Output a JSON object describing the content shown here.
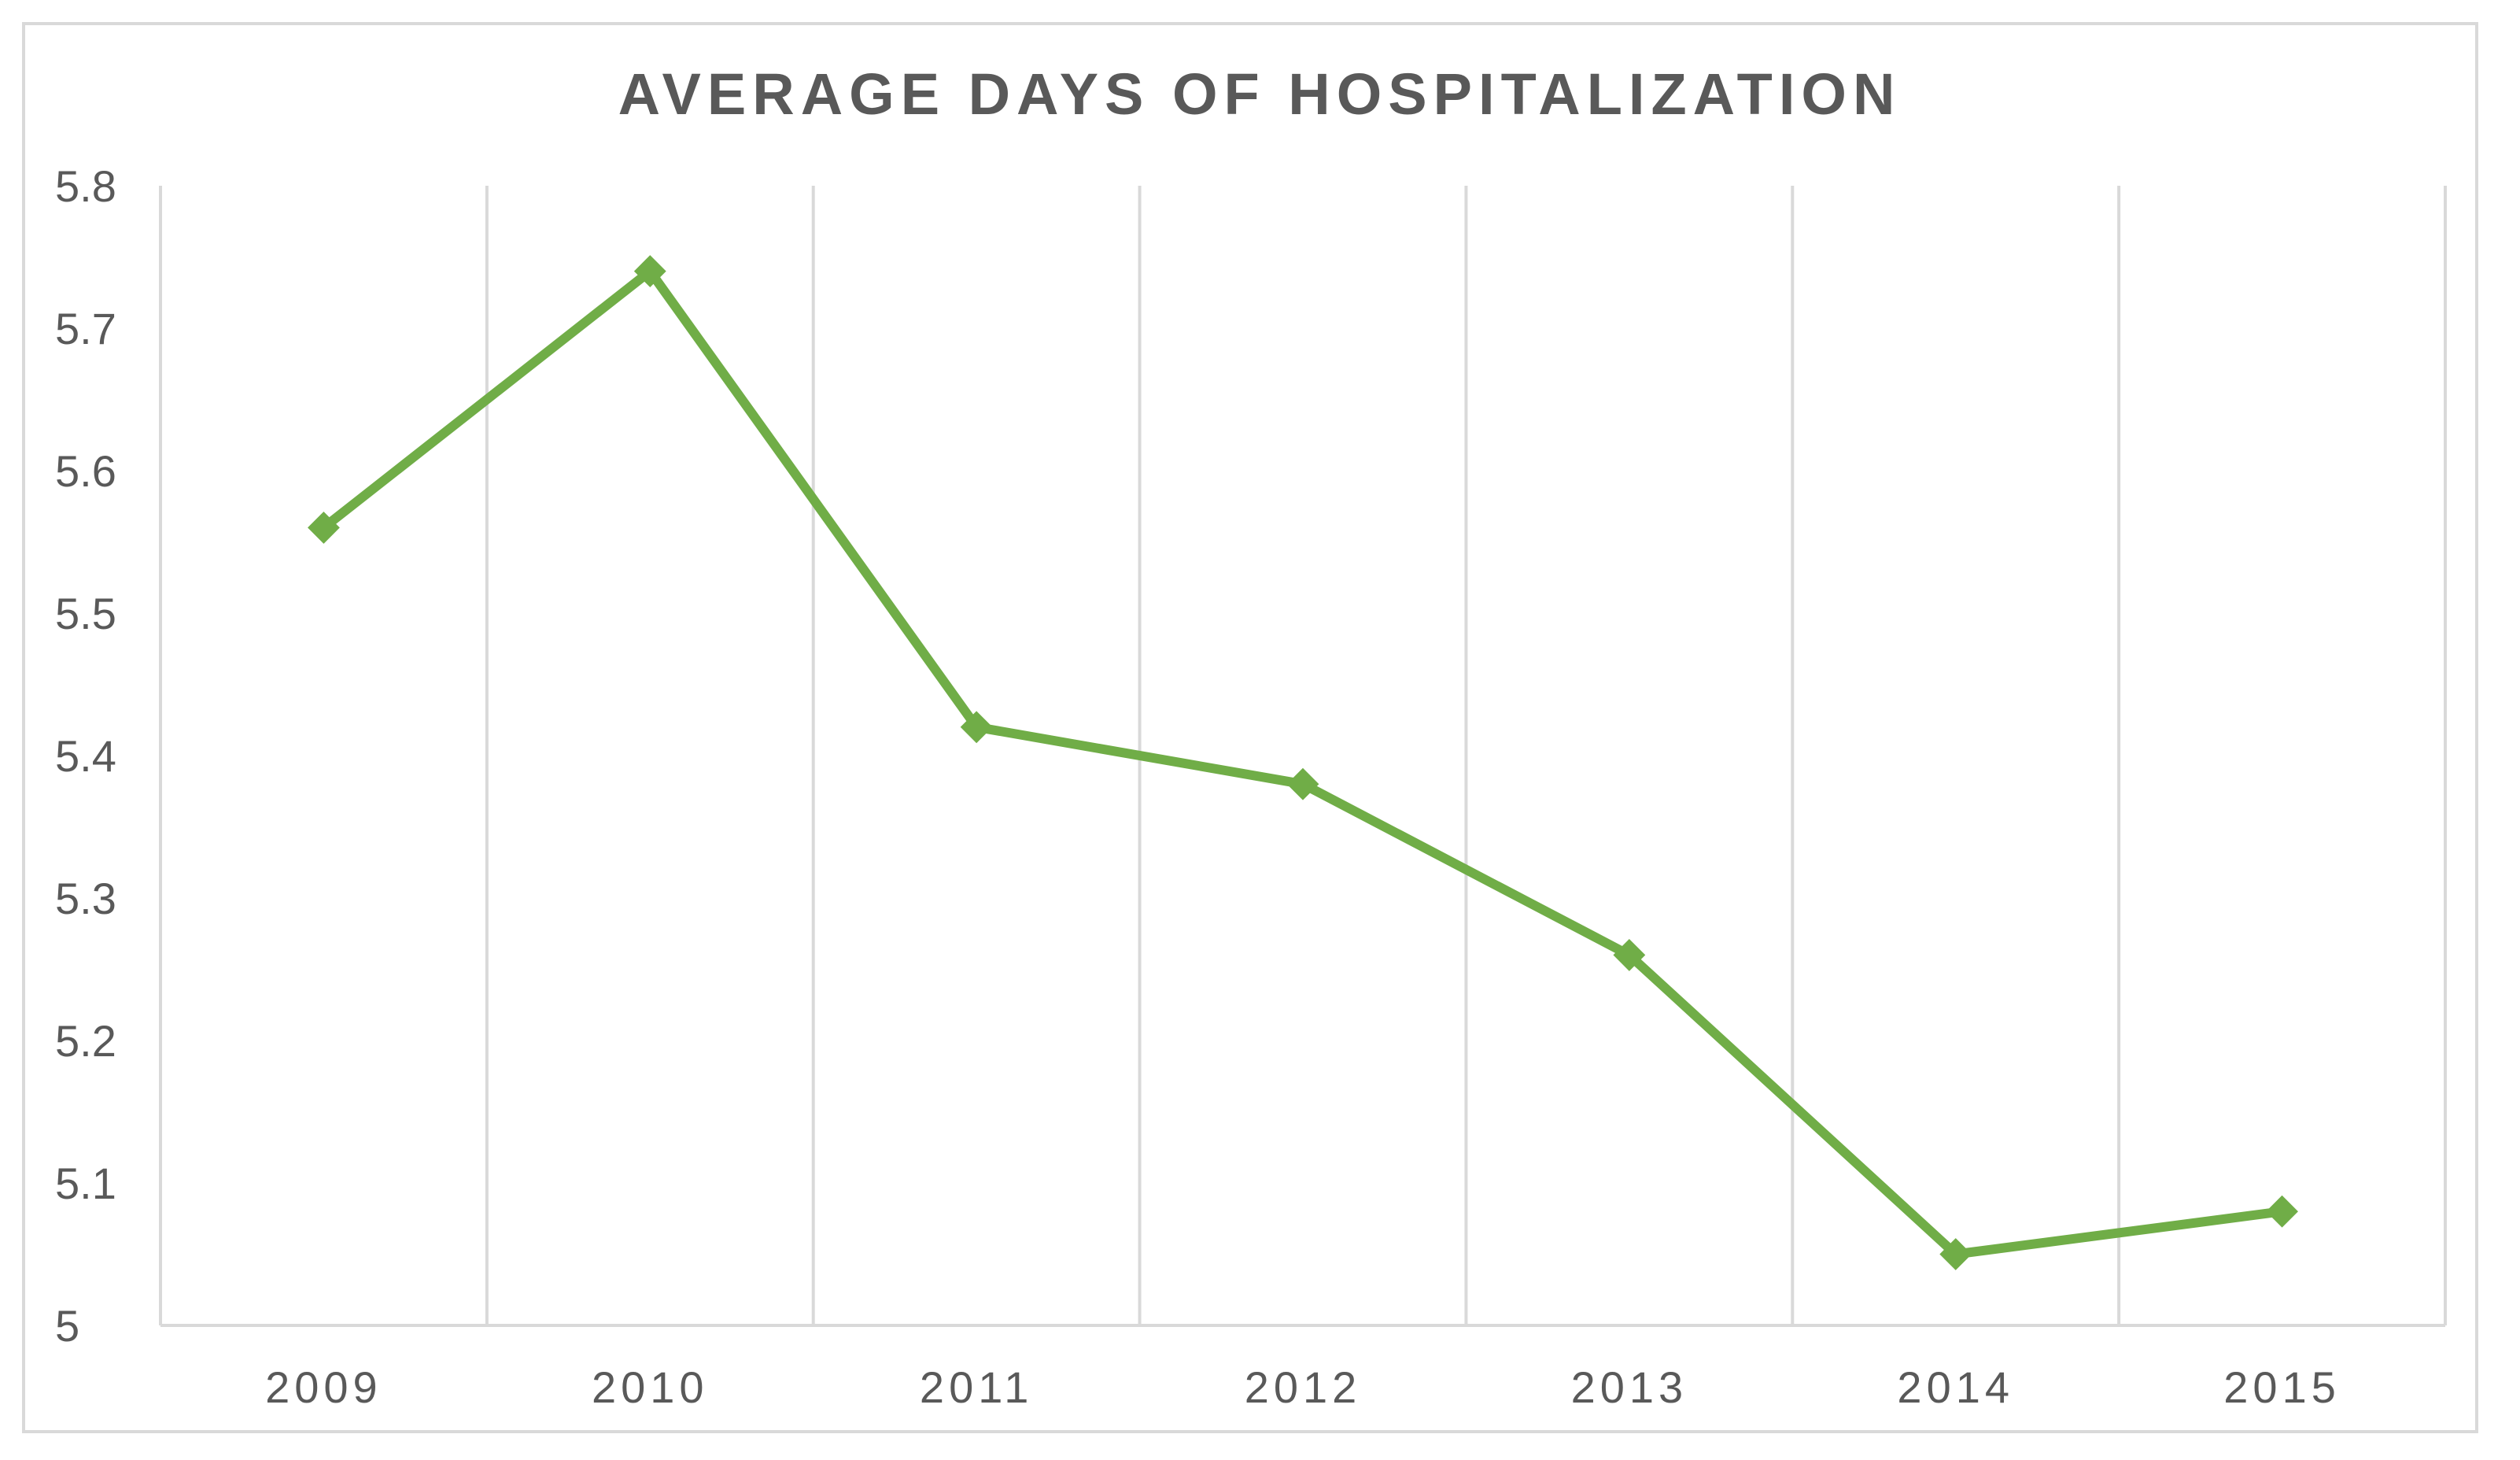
{
  "chart_data": {
    "type": "line",
    "title": "AVERAGE DAYS OF HOSPITALIZATION",
    "xlabel": "",
    "ylabel": "",
    "categories": [
      "2009",
      "2010",
      "2011",
      "2012",
      "2013",
      "2014",
      "2015"
    ],
    "series": [
      {
        "values": [
          5.56,
          5.74,
          5.42,
          5.38,
          5.26,
          5.05,
          5.08
        ],
        "color": "#70ad47",
        "marker": "diamond"
      }
    ],
    "ylim": [
      5,
      5.8
    ],
    "yticks": [
      "5",
      "5.1",
      "5.2",
      "5.3",
      "5.4",
      "5.5",
      "5.6",
      "5.7",
      "5.8"
    ],
    "grid": "vertical",
    "legend": "none"
  }
}
